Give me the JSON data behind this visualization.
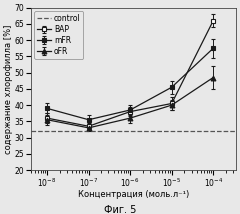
{
  "x_values": [
    1e-08,
    1e-07,
    1e-06,
    1e-05,
    0.0001
  ],
  "BAP": [
    36.0,
    33.5,
    38.0,
    40.5,
    66.0
  ],
  "mFR": [
    39.0,
    35.5,
    38.5,
    45.5,
    57.5
  ],
  "oFR": [
    35.5,
    33.0,
    36.0,
    40.0,
    48.5
  ],
  "BAP_err": [
    1.5,
    1.0,
    1.5,
    2.0,
    2.0
  ],
  "mFR_err": [
    1.5,
    1.5,
    1.5,
    2.0,
    3.0
  ],
  "oFR_err": [
    1.5,
    1.0,
    1.5,
    1.5,
    3.5
  ],
  "control": 32.0,
  "ylim": [
    20,
    70
  ],
  "ylabel": "содержание хлорофилла [%]",
  "xlabel": "Концентрация (моль.л⁻¹)",
  "caption": "Фиг. 5",
  "line_color_BAP": "#1a1a1a",
  "line_color_mFR": "#1a1a1a",
  "line_color_oFR": "#1a1a1a",
  "control_color": "#555555",
  "legend_labels": [
    "BAP",
    "mFR",
    "oFR",
    "control"
  ],
  "axis_fontsize": 6.0,
  "tick_fontsize": 5.5,
  "legend_fontsize": 5.5,
  "caption_fontsize": 7.0,
  "bg_color": "#e8e8e8",
  "yticks": [
    20,
    25,
    30,
    35,
    40,
    45,
    50,
    55,
    60,
    65,
    70
  ]
}
